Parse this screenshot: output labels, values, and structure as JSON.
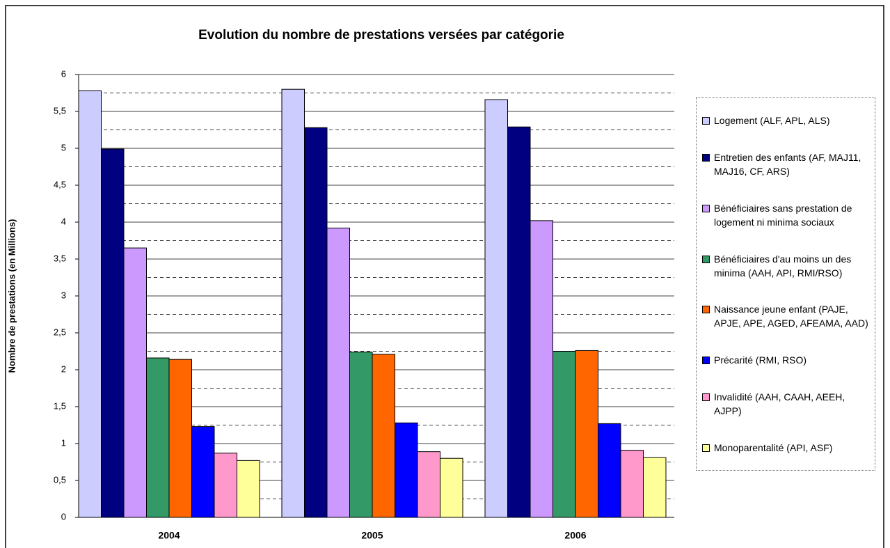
{
  "chart_data": {
    "type": "bar",
    "title": "Evolution du nombre de prestations versées par catégorie",
    "y_label": "Nombre de prestations (en Millions)",
    "categories": [
      "2004",
      "2005",
      "2006"
    ],
    "series": [
      {
        "name": "Logement (ALF, APL, ALS)",
        "color": "#ccccff",
        "values": [
          5.78,
          5.8,
          5.66
        ]
      },
      {
        "name": "Entretien des enfants (AF, MAJ11, MAJ16, CF, ARS)",
        "color": "#000080",
        "values": [
          4.99,
          5.28,
          5.29
        ]
      },
      {
        "name": "Bénéficiaires sans prestation de logement ni minima sociaux",
        "color": "#cc99ff",
        "values": [
          3.65,
          3.92,
          4.02
        ]
      },
      {
        "name": "Bénéficiaires d'au moins un des minima (AAH, API, RMI/RSO)",
        "color": "#339966",
        "values": [
          2.16,
          2.24,
          2.25
        ]
      },
      {
        "name": "Naissance jeune enfant (PAJE, APJE, APE, AGED, AFEAMA, AAD)",
        "color": "#ff6600",
        "values": [
          2.14,
          2.21,
          2.26
        ]
      },
      {
        "name": "Précarité (RMI, RSO)",
        "color": "#0000ff",
        "values": [
          1.23,
          1.28,
          1.27
        ]
      },
      {
        "name": "Invalidité (AAH, CAAH, AEEH, AJPP)",
        "color": "#ff99cc",
        "values": [
          0.87,
          0.89,
          0.91
        ]
      },
      {
        "name": "Monoparentalité (API, ASF)",
        "color": "#ffff99",
        "values": [
          0.77,
          0.8,
          0.81
        ]
      }
    ],
    "ylim": [
      0,
      6
    ],
    "yticks": [
      0,
      {
        "value": 0.5,
        "label": "0,5"
      },
      1,
      {
        "value": 1.5,
        "label": "1,5"
      },
      2,
      {
        "value": 2.5,
        "label": "2,5"
      },
      3,
      {
        "value": 3.5,
        "label": "3,5"
      },
      4,
      {
        "value": 4.5,
        "label": "4,5"
      },
      5,
      {
        "value": 5.5,
        "label": "5,5"
      },
      6
    ],
    "yminor": [
      0.25,
      0.75,
      1.25,
      1.75,
      2.25,
      2.75,
      3.25,
      3.75,
      4.25,
      4.75,
      5.25,
      5.75
    ],
    "grid": true,
    "legend": "right"
  }
}
